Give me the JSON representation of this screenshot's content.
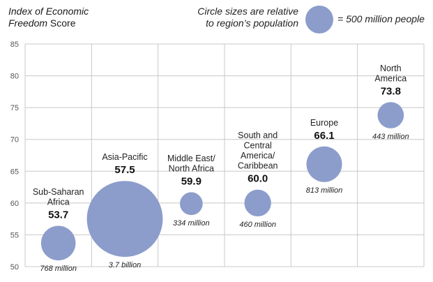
{
  "title_line1": "Index of Economic",
  "title_line2_italic": "Freedom",
  "title_line2_rest": " Score",
  "legend": {
    "text_line1": "Circle sizes are relative",
    "text_line2": "to region’s population",
    "equals_label": "= 500 million people",
    "circle_population_millions": 500
  },
  "colors": {
    "bubble": "#8c9dcb",
    "grid": "#c8c8c8",
    "axis_text": "#555555"
  },
  "chart_data": {
    "type": "scatter",
    "ylim": [
      50,
      85
    ],
    "yticks": [
      50,
      55,
      60,
      65,
      70,
      75,
      80,
      85
    ],
    "points": [
      {
        "label_lines": [
          "Sub-Saharan",
          "Africa"
        ],
        "score": 53.7,
        "score_label": "53.7",
        "population_millions": 768,
        "population_label": "768 million"
      },
      {
        "label_lines": [
          "Asia-Pacific"
        ],
        "score": 57.5,
        "score_label": "57.5",
        "population_millions": 3700,
        "population_label": "3.7 billion"
      },
      {
        "label_lines": [
          "Middle East/",
          "North Africa"
        ],
        "score": 59.9,
        "score_label": "59.9",
        "population_millions": 334,
        "population_label": "334 million"
      },
      {
        "label_lines": [
          "South and",
          "Central",
          "America/",
          "Caribbean"
        ],
        "score": 60.0,
        "score_label": "60.0",
        "population_millions": 460,
        "population_label": "460 million"
      },
      {
        "label_lines": [
          "Europe"
        ],
        "score": 66.1,
        "score_label": "66.1",
        "population_millions": 813,
        "population_label": "813 million"
      },
      {
        "label_lines": [
          "North",
          "America"
        ],
        "score": 73.8,
        "score_label": "73.8",
        "population_millions": 443,
        "population_label": "443 million"
      }
    ]
  }
}
